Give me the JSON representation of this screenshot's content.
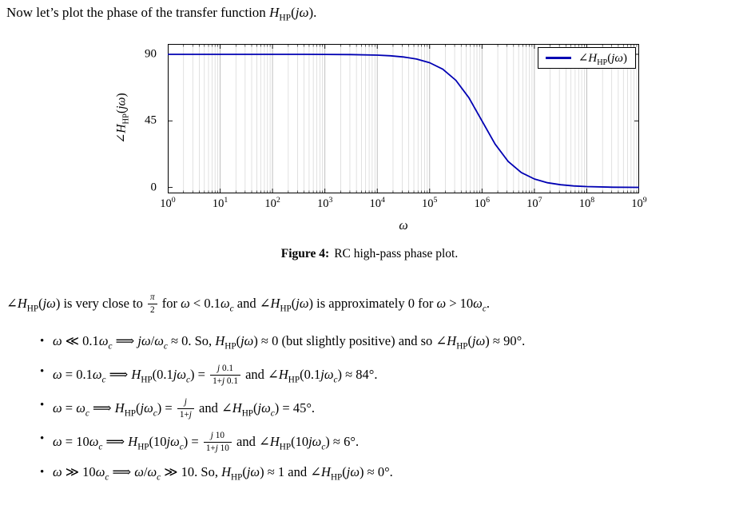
{
  "intro_html": "Now let’s plot the phase of the transfer function <i>H</i><sub>HP</sub>(<i>jω</i>).",
  "figure": {
    "ylabel_html": "∠<i>H</i><sub>HP</sub>(<i>jω</i>)",
    "xlabel_html": "<i>ω</i>",
    "legend_html": "∠<i>H</i><sub>HP</sub>(<i>jω</i>)",
    "caption_label": "Figure 4:",
    "caption_text": "RC high-pass phase plot."
  },
  "chart_data": {
    "type": "line",
    "title": "",
    "xlabel": "ω",
    "ylabel": "∠H_HP(jω)",
    "x_scale": "log10",
    "xlim_log10": [
      0,
      9
    ],
    "ylim": [
      -4,
      97
    ],
    "y_ticks": [
      0,
      45,
      90
    ],
    "x_tick_base": "10",
    "x_ticks_exponents": [
      0,
      1,
      2,
      3,
      4,
      5,
      6,
      7,
      8,
      9
    ],
    "grid": "vertical log minor + major",
    "legend_position": "top-right",
    "corner_frequency_log10": 6,
    "series": [
      {
        "name": "∠H_HP(jω)",
        "color": "#0000B3",
        "x_log10": [
          0,
          0.5,
          1,
          1.5,
          2,
          2.5,
          3,
          3.5,
          4,
          4.25,
          4.5,
          4.75,
          5,
          5.25,
          5.5,
          5.75,
          6,
          6.25,
          6.5,
          6.75,
          7,
          7.25,
          7.5,
          7.75,
          8,
          8.5,
          9
        ],
        "y_phase_deg": [
          90,
          90,
          90,
          90,
          89.99,
          89.98,
          89.94,
          89.82,
          89.43,
          88.98,
          88.19,
          86.79,
          84.29,
          79.92,
          72.45,
          60.65,
          45,
          29.35,
          17.55,
          10.08,
          5.71,
          3.21,
          1.81,
          1.02,
          0.57,
          0.18,
          0.06
        ]
      }
    ]
  },
  "body": {
    "bullet_glyph": "•",
    "paragraph_html": "∠<i>H</i><sub>HP</sub>(<i>jω</i>) is very close to <span class='frac'><span class='num'><i>π</i></span><span class='den'>2</span></span> for <i>ω</i> &lt; 0.1<i>ω</i><sub><i>c</i></sub> and ∠<i>H</i><sub>HP</sub>(<i>jω</i>) is approximately 0 for <i>ω</i> &gt; 10<i>ω</i><sub><i>c</i></sub>.",
    "bullets_html": [
      "<i>ω</i> ≪ 0.1<i>ω</i><sub><i>c</i></sub> ⟹ <i>jω</i>/<i>ω</i><sub><i>c</i></sub> ≈ 0. So, <i>H</i><sub>HP</sub>(<i>jω</i>) ≈ 0 (but slightly positive) and so ∠<i>H</i><sub>HP</sub>(<i>jω</i>) ≈ 90°.",
      "<i>ω</i> = 0.1<i>ω</i><sub><i>c</i></sub> ⟹ <i>H</i><sub>HP</sub>(0.1<i>jω</i><sub><i>c</i></sub>) = <span class='frac'><span class='num'><i>j</i> 0.1</span><span class='den'>1+<i>j</i> 0.1</span></span> and ∠<i>H</i><sub>HP</sub>(0.1<i>jω</i><sub><i>c</i></sub>) ≈ 84°.",
      "<i>ω</i> = <i>ω</i><sub><i>c</i></sub> ⟹ <i>H</i><sub>HP</sub>(<i>jω</i><sub><i>c</i></sub>) = <span class='frac'><span class='num'><i>j</i></span><span class='den'>1+<i>j</i></span></span> and ∠<i>H</i><sub>HP</sub>(<i>jω</i><sub><i>c</i></sub>) = 45°.",
      "<i>ω</i> = 10<i>ω</i><sub><i>c</i></sub> ⟹ <i>H</i><sub>HP</sub>(10<i>jω</i><sub><i>c</i></sub>) = <span class='frac'><span class='num'><i>j</i> 10</span><span class='den'>1+<i>j</i> 10</span></span> and ∠<i>H</i><sub>HP</sub>(10<i>jω</i><sub><i>c</i></sub>) ≈ 6°.",
      "<i>ω</i> ≫ 10<i>ω</i><sub><i>c</i></sub> ⟹ <i>ω</i>/<i>ω</i><sub><i>c</i></sub> ≫ 10. So, <i>H</i><sub>HP</sub>(<i>jω</i>) ≈ 1 and ∠<i>H</i><sub>HP</sub>(<i>jω</i>) ≈ 0°."
    ]
  },
  "colors": {
    "curve": "#0000B3",
    "grid_minor": "#d4d4d4",
    "grid_major": "#b9b9b9",
    "frame": "#000000"
  }
}
